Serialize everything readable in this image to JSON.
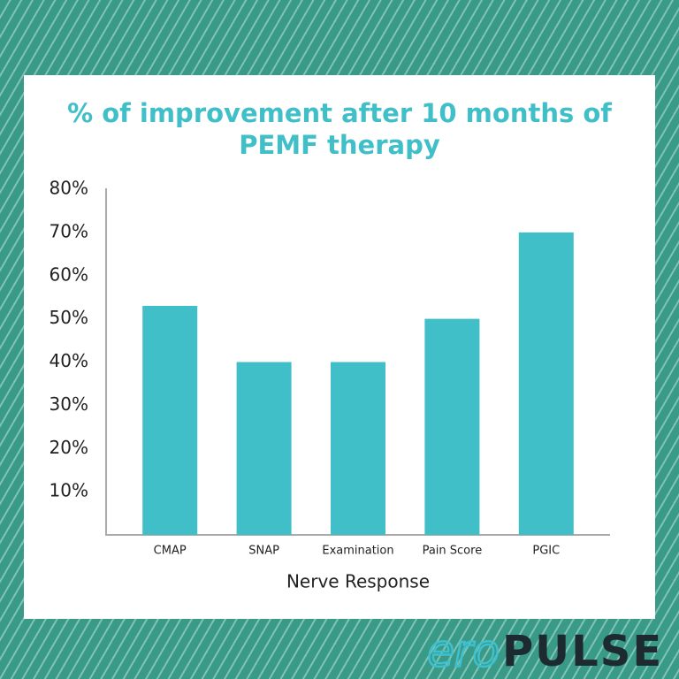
{
  "chart_data": {
    "type": "bar",
    "title": [
      "% of improvement after 10 months of",
      "PEMF therapy"
    ],
    "x_label": "Nerve Response",
    "categories": [
      "CMAP",
      "SNAP",
      "Examination",
      "Pain Score",
      "PGIC"
    ],
    "values": [
      53,
      40,
      40,
      50,
      70
    ],
    "color": "#40bfc8",
    "ylim": [
      0,
      80
    ],
    "yticks": [
      {
        "value": 10,
        "label": "10%"
      },
      {
        "value": 20,
        "label": "20%"
      },
      {
        "value": 30,
        "label": "30%"
      },
      {
        "value": 40,
        "label": "40%"
      },
      {
        "value": 50,
        "label": "50%"
      },
      {
        "value": 60,
        "label": "60%"
      },
      {
        "value": 70,
        "label": "70%"
      },
      {
        "value": 80,
        "label": "80%"
      }
    ],
    "grid": false
  },
  "logo": {
    "first": "ero",
    "second": "PULSE"
  }
}
